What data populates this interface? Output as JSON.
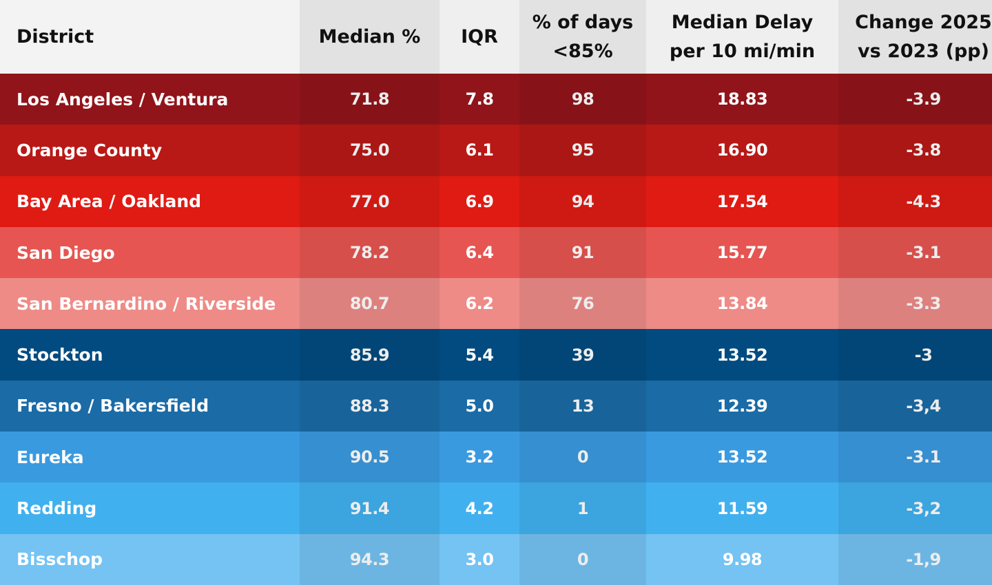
{
  "chart_data": {
    "type": "table",
    "columns": [
      "District",
      "Median %",
      "IQR",
      "% of days <85%",
      "Median Delay per 10 mi/min",
      "Change 2025 vs 2023 (pp)"
    ],
    "header_lines": [
      [
        "District"
      ],
      [
        "Median %"
      ],
      [
        "IQR"
      ],
      [
        "% of days",
        "<85%"
      ],
      [
        "Median Delay",
        "per 10 mi/min"
      ],
      [
        "Change 2025",
        "vs 2023 (pp)"
      ]
    ],
    "rows": [
      {
        "district": "Los Angeles / Ventura",
        "median": "71.8",
        "iqr": "7.8",
        "days": "98",
        "delay": "18.83",
        "change": "-3.9",
        "color": "#91141a"
      },
      {
        "district": "Orange County",
        "median": "75.0",
        "iqr": "6.1",
        "days": "95",
        "delay": "16.90",
        "change": "-3.8",
        "color": "#b81916"
      },
      {
        "district": "Bay Area / Oakland",
        "median": "77.0",
        "iqr": "6.9",
        "days": "94",
        "delay": "17.54",
        "change": "-4.3",
        "color": "#df1b14"
      },
      {
        "district": "San Diego",
        "median": "78.2",
        "iqr": "6.4",
        "days": "91",
        "delay": "15.77",
        "change": "-3.1",
        "color": "#e65551"
      },
      {
        "district": "San Bernardino / Riverside",
        "median": "80.7",
        "iqr": "6.2",
        "days": "76",
        "delay": "13.84",
        "change": "-3.3",
        "color": "#ee8b87"
      },
      {
        "district": "Stockton",
        "median": "85.9",
        "iqr": "5.4",
        "days": "39",
        "delay": "13.52",
        "change": "-3",
        "color": "#024b80"
      },
      {
        "district": "Fresno / Bakersfield",
        "median": "88.3",
        "iqr": "5.0",
        "days": "13",
        "delay": "12.39",
        "change": "-3,4",
        "color": "#1a6ba6"
      },
      {
        "district": "Eureka",
        "median": "90.5",
        "iqr": "3.2",
        "days": "0",
        "delay": "13.52",
        "change": "-3.1",
        "color": "#3a9ae0"
      },
      {
        "district": "Redding",
        "median": "91.4",
        "iqr": "4.2",
        "days": "1",
        "delay": "11.59",
        "change": "-3,2",
        "color": "#41b0ef"
      },
      {
        "district": "Bisschop",
        "median": "94.3",
        "iqr": "3.0",
        "days": "0",
        "delay": "9.98",
        "change": "-1,9",
        "color": "#74c3f3"
      }
    ]
  }
}
